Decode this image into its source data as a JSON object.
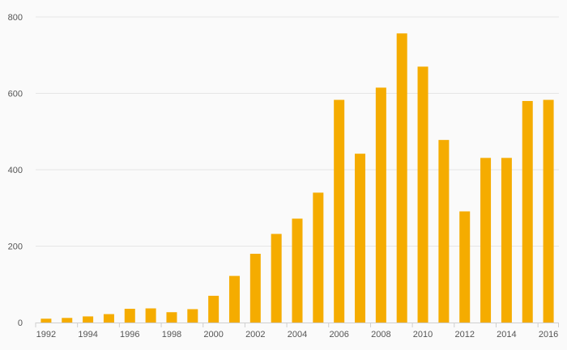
{
  "chart_data": {
    "type": "bar",
    "color": "#f5ac00",
    "categories": [
      "1992",
      "1993",
      "1994",
      "1995",
      "1996",
      "1997",
      "1998",
      "1999",
      "2000",
      "2001",
      "2002",
      "2003",
      "2004",
      "2005",
      "2006",
      "2007",
      "2008",
      "2009",
      "2010",
      "2011",
      "2012",
      "2013",
      "2014",
      "2015",
      "2016"
    ],
    "x_tick_labels": [
      "1992",
      "1994",
      "1996",
      "1998",
      "2000",
      "2002",
      "2004",
      "2006",
      "2008",
      "2010",
      "2012",
      "2014",
      "2016"
    ],
    "values": [
      10,
      12,
      16,
      22,
      36,
      37,
      27,
      35,
      70,
      122,
      180,
      232,
      272,
      340,
      583,
      442,
      615,
      757,
      670,
      478,
      291,
      431,
      431,
      580,
      583
    ],
    "y_ticks": [
      0,
      200,
      400,
      600,
      800
    ],
    "ylim": [
      0,
      800
    ],
    "title": "",
    "xlabel": "",
    "ylabel": "",
    "grid": true,
    "legend": "none"
  }
}
